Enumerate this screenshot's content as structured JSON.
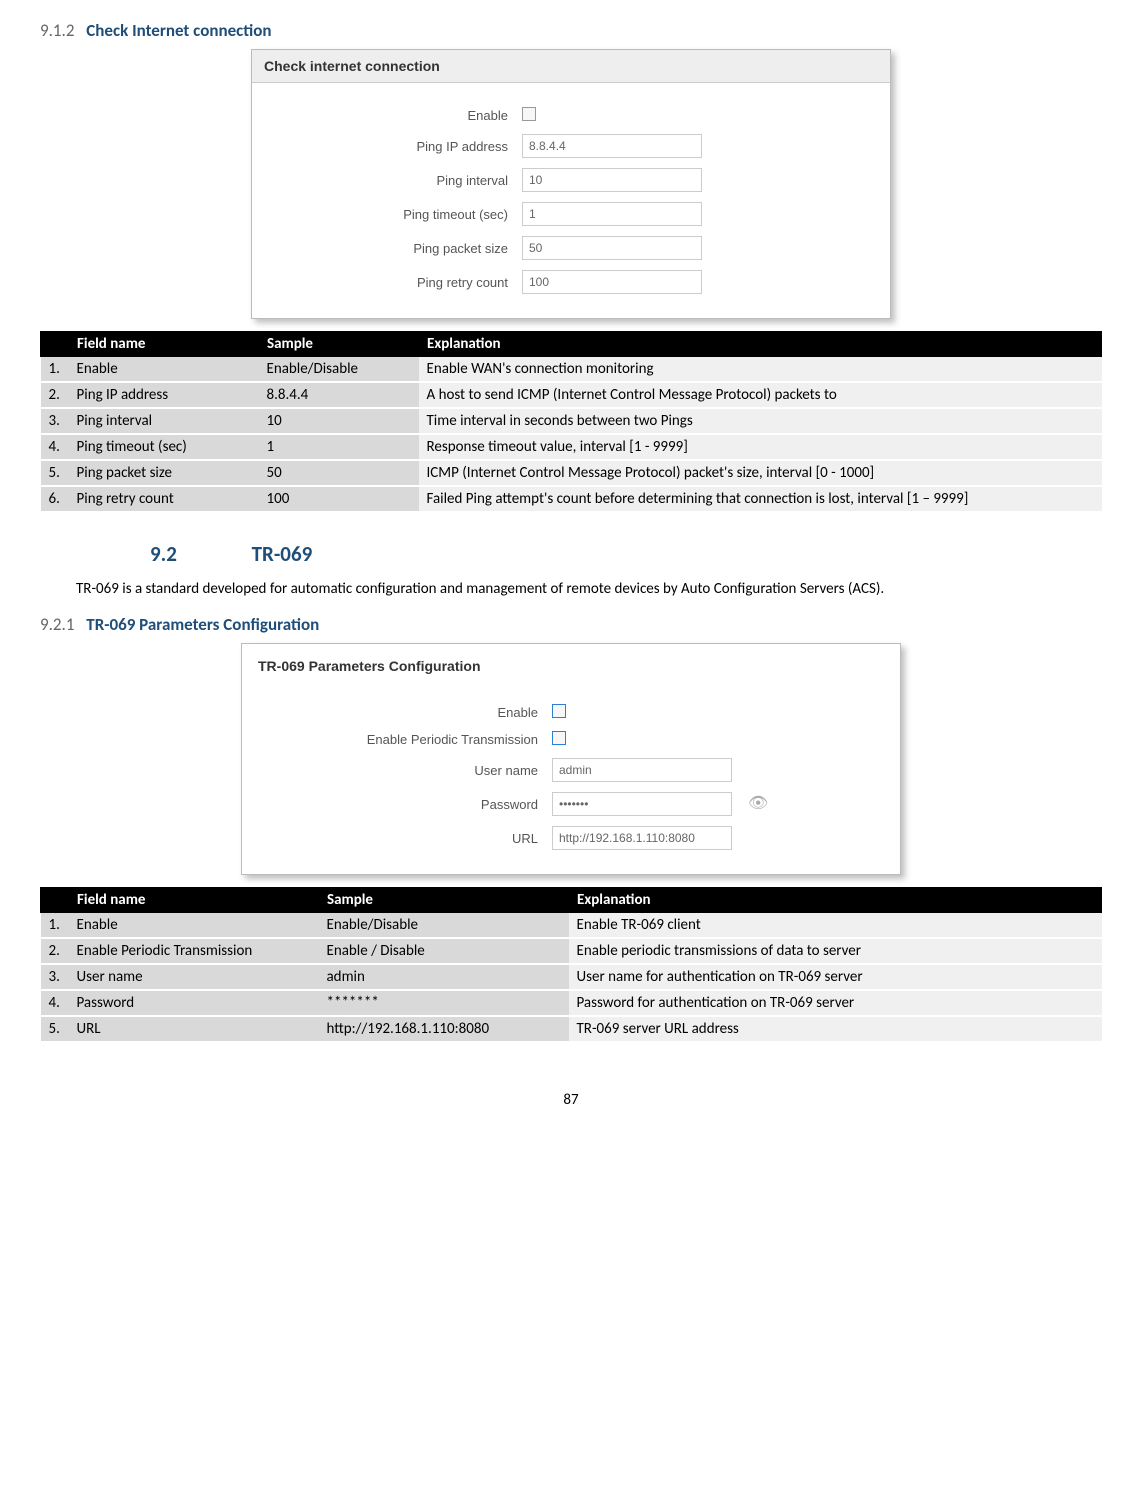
{
  "sec912": {
    "num": "9.1.2",
    "title": "Check Internet connection"
  },
  "shot1": {
    "title": "Check internet connection",
    "rows": [
      {
        "label": "Enable",
        "type": "cb",
        "value": ""
      },
      {
        "label": "Ping IP address",
        "type": "text",
        "value": "8.8.4.4"
      },
      {
        "label": "Ping interval",
        "type": "text",
        "value": "10"
      },
      {
        "label": "Ping timeout (sec)",
        "type": "text",
        "value": "1"
      },
      {
        "label": "Ping packet size",
        "type": "text",
        "value": "50"
      },
      {
        "label": "Ping retry count",
        "type": "text",
        "value": "100"
      }
    ]
  },
  "t1": {
    "headers": [
      "",
      "Field name",
      "Sample",
      "Explanation"
    ],
    "widths": [
      "28px",
      "190px",
      "160px",
      "auto"
    ],
    "rows": [
      [
        "1.",
        "Enable",
        "Enable/Disable",
        "Enable WAN's connection monitoring"
      ],
      [
        "2.",
        "Ping IP address",
        "8.8.4.4",
        "A host to send ICMP (Internet Control Message Protocol) packets to"
      ],
      [
        "3.",
        "Ping interval",
        "10",
        "Time interval in seconds between two Pings"
      ],
      [
        "4.",
        "Ping timeout (sec)",
        "1",
        "Response timeout value, interval [1 - 9999]"
      ],
      [
        "5.",
        "Ping packet size",
        "50",
        "ICMP (Internet Control Message Protocol) packet's size, interval [0 - 1000]"
      ],
      [
        "6.",
        "Ping retry count",
        "100",
        "Failed Ping attempt's count before determining that connection is lost, interval [1 – 9999]"
      ]
    ]
  },
  "sec92": {
    "num": "9.2",
    "title": "TR-069"
  },
  "para92": "TR-069 is a standard developed for automatic configuration and management of remote devices by Auto Configuration Servers (ACS).",
  "sec921": {
    "num": "9.2.1",
    "title": "TR-069 Parameters Configuration"
  },
  "shot2": {
    "title": "TR-069 Parameters Configuration",
    "rows": [
      {
        "label": "Enable",
        "type": "cb-blue",
        "value": ""
      },
      {
        "label": "Enable Periodic Transmission",
        "type": "cb-blue",
        "value": ""
      },
      {
        "label": "User name",
        "type": "text",
        "value": "admin"
      },
      {
        "label": "Password",
        "type": "password",
        "value": "•••••••",
        "eye": true
      },
      {
        "label": "URL",
        "type": "text",
        "value": "http://192.168.1.110:8080"
      }
    ]
  },
  "t2": {
    "headers": [
      "",
      "Field name",
      "Sample",
      "Explanation"
    ],
    "widths": [
      "28px",
      "250px",
      "250px",
      "auto"
    ],
    "rows": [
      [
        "1.",
        "Enable",
        "Enable/Disable",
        "Enable TR-069 client"
      ],
      [
        "2.",
        "Enable Periodic Transmission",
        "Enable / Disable",
        "Enable periodic transmissions of data to server"
      ],
      [
        "3.",
        "User name",
        "admin",
        "User name for authentication on TR-069 server"
      ],
      [
        "4.",
        "Password",
        "*******",
        "Password for authentication on TR-069 server"
      ],
      [
        "5.",
        "URL",
        "http://192.168.1.110:8080",
        "TR-069 server URL address"
      ]
    ]
  },
  "page": "87"
}
